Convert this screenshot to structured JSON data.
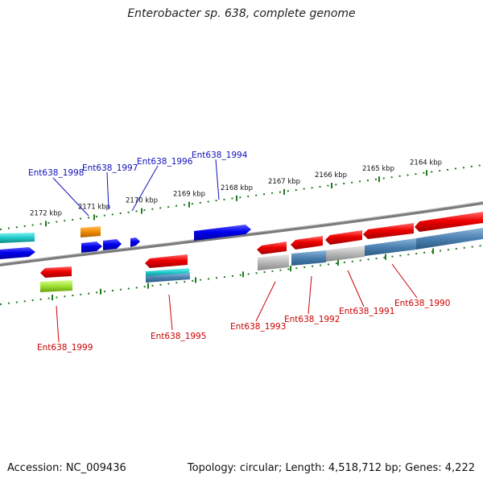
{
  "title": "Enterobacter sp. 638, complete genome",
  "footer": {
    "accession": "Accession: NC_009436",
    "summary": "Topology: circular; Length: 4,518,712 bp; Genes: 4,222"
  },
  "ticks": [
    "2172 kbp",
    "2171 kbp",
    "2170 kbp",
    "2169 kbp",
    "2168 kbp",
    "2167 kbp",
    "2166 kbp",
    "2165 kbp",
    "2164 kbp"
  ],
  "genes_top": [
    "Ent638_1998",
    "Ent638_1997",
    "Ent638_1996",
    "Ent638_1994"
  ],
  "genes_bottom": [
    "Ent638_1999",
    "Ent638_1995",
    "Ent638_1993",
    "Ent638_1992",
    "Ent638_1991",
    "Ent638_1990"
  ],
  "colors": {
    "forward": "#0000ee",
    "reverse": "#ee0000",
    "label_top": "#1010bb",
    "label_bottom": "#cc0000",
    "tick": "#1e7a1e",
    "backbone": "#808080",
    "cyan": "#20c8c8",
    "orange": "#f08a00",
    "steel": "#4a80b0",
    "grey": "#b8b8b8",
    "lime": "#9ee030"
  }
}
